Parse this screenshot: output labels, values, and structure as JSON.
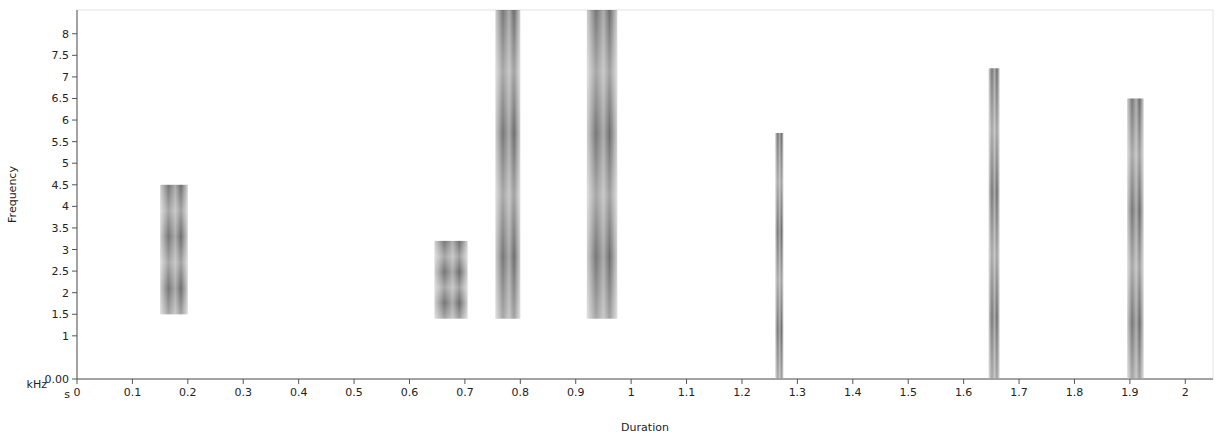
{
  "chart_data": {
    "type": "spectrogram",
    "x_label": "Duration",
    "y_label": "Frequency",
    "x_unit": "s",
    "y_unit": "kHz",
    "color": "#4a4a4a",
    "xlim": [
      0,
      2.05
    ],
    "xticks": [
      0,
      0.1,
      0.2,
      0.3,
      0.4,
      0.5,
      0.6,
      0.7,
      0.8,
      0.9,
      {
        "value": 1,
        "label": "1"
      },
      1.1,
      1.2,
      1.3,
      1.4,
      1.5,
      1.6,
      1.7,
      1.8,
      1.9,
      2
    ],
    "ylim": [
      0,
      8.55
    ],
    "yticks": [
      {
        "value": 0,
        "label": "0.00"
      },
      1,
      1.5,
      2,
      2.5,
      3,
      3.5,
      4,
      4.5,
      5,
      5.5,
      6,
      6.5,
      7,
      7.5,
      8
    ],
    "events": [
      {
        "start": 0.15,
        "end": 0.2,
        "low": 1.5,
        "high": 4.5
      },
      {
        "start": 0.645,
        "end": 0.705,
        "low": 1.4,
        "high": 3.2
      },
      {
        "start": 0.755,
        "end": 0.8,
        "low": 1.4,
        "high": 8.55
      },
      {
        "start": 0.92,
        "end": 0.975,
        "low": 1.4,
        "high": 8.55
      },
      {
        "start": 1.26,
        "end": 1.275,
        "low": 0,
        "high": 5.7
      },
      {
        "start": 1.645,
        "end": 1.665,
        "low": 0,
        "high": 7.2
      },
      {
        "start": 1.895,
        "end": 1.925,
        "low": 0,
        "high": 6.5
      }
    ]
  }
}
